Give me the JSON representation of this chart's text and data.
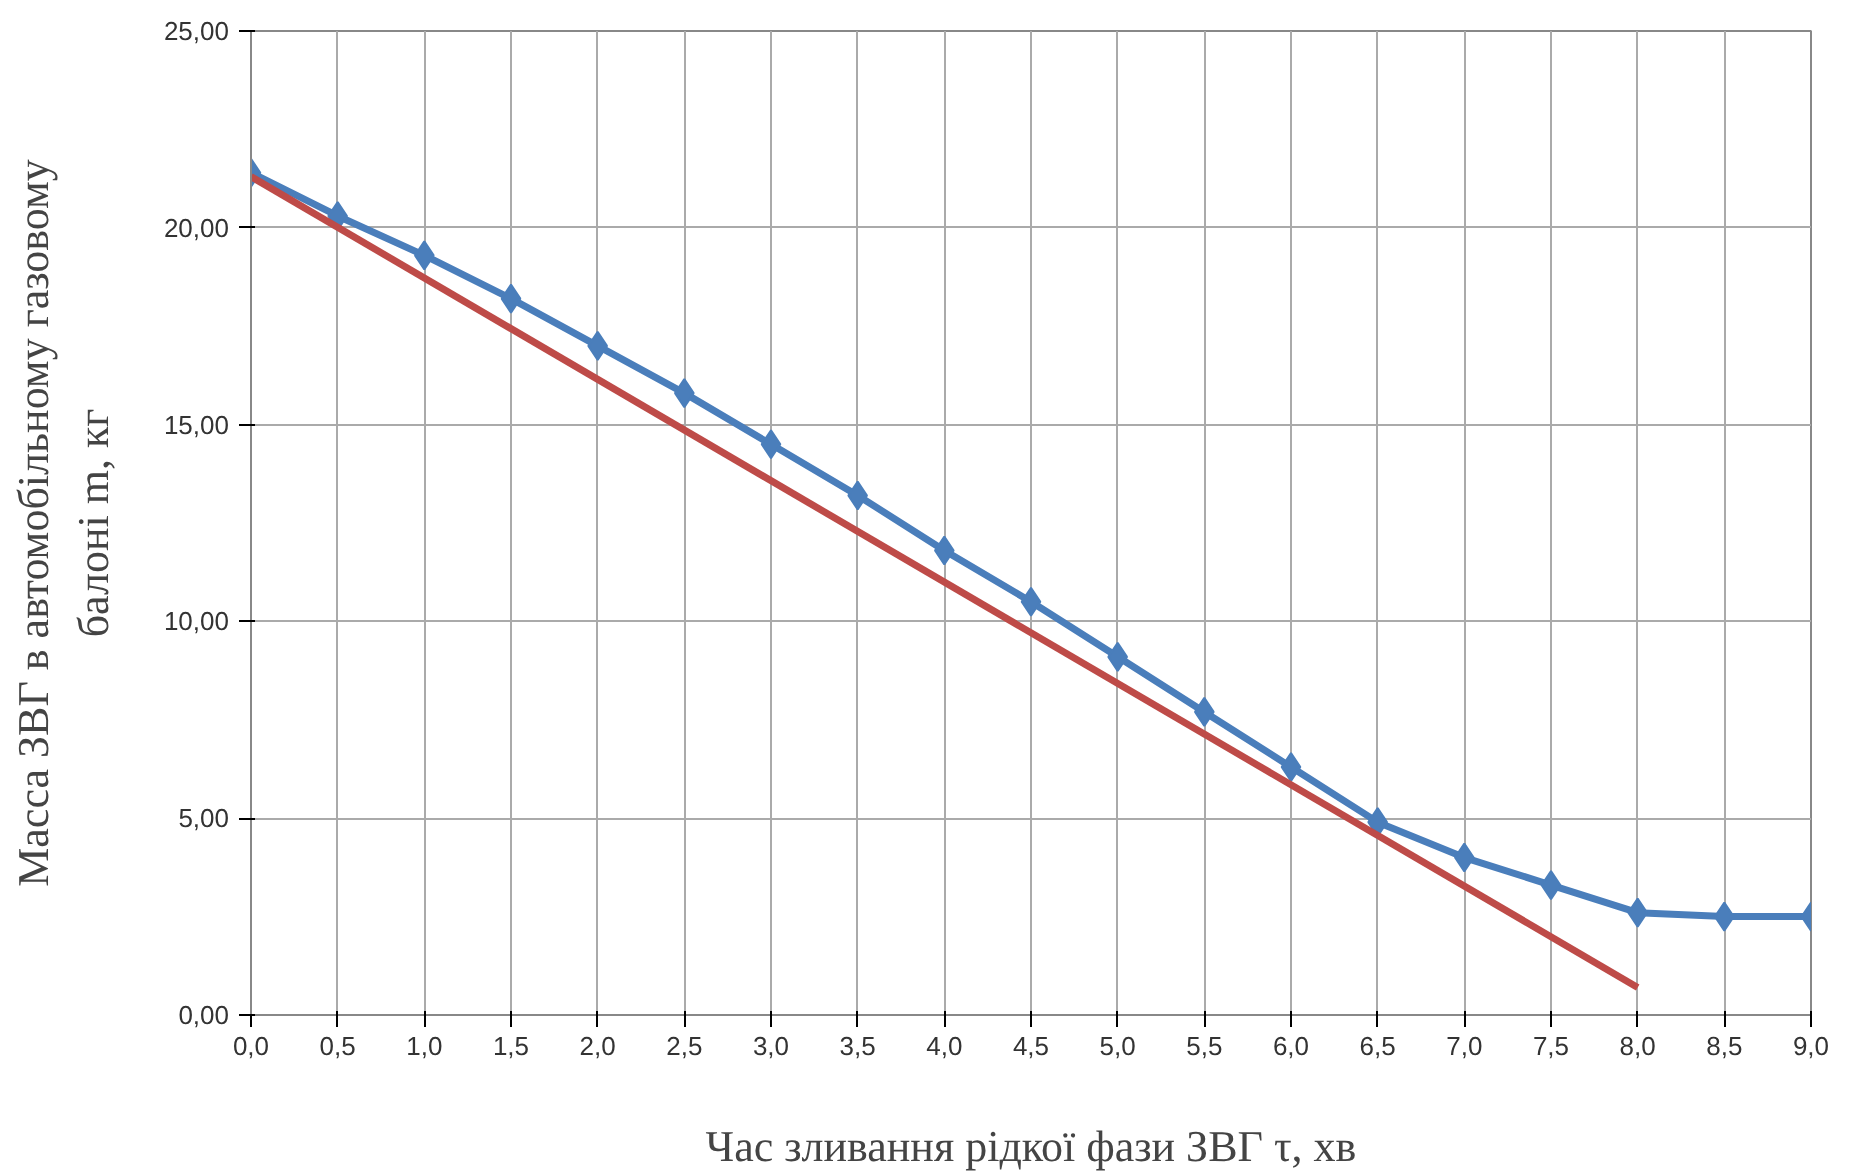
{
  "chart_data": {
    "type": "line",
    "xlabel": "Час зливання рідкої фази ЗВГ τ, хв",
    "ylabel": "Масса ЗВГ в автомобільному газовому\nбалоні m, кг",
    "x": [
      0,
      0.5,
      1,
      1.5,
      2,
      2.5,
      3,
      3.5,
      4,
      4.5,
      5,
      5.5,
      6,
      6.5,
      7,
      7.5,
      8,
      8.5,
      9
    ],
    "series": [
      {
        "color": "#4a7ebb",
        "marker": "diamond",
        "values": [
          21.4,
          20.3,
          19.3,
          18.2,
          17.0,
          15.8,
          14.5,
          13.2,
          11.8,
          10.5,
          9.1,
          7.7,
          6.3,
          4.9,
          4.0,
          3.3,
          2.6,
          2.5,
          2.5
        ]
      },
      {
        "color": "#be4b48",
        "marker": "none",
        "x": [
          0,
          8
        ],
        "values": [
          21.3,
          0.7
        ]
      }
    ],
    "xlim": [
      0,
      9
    ],
    "ylim": [
      0,
      25
    ],
    "xticks": [
      {
        "value": 0,
        "label": "0,0"
      },
      {
        "value": 0.5,
        "label": "0,5"
      },
      {
        "value": 1,
        "label": "1,0"
      },
      {
        "value": 1.5,
        "label": "1,5"
      },
      {
        "value": 2,
        "label": "2,0"
      },
      {
        "value": 2.5,
        "label": "2,5"
      },
      {
        "value": 3,
        "label": "3,0"
      },
      {
        "value": 3.5,
        "label": "3,5"
      },
      {
        "value": 4,
        "label": "4,0"
      },
      {
        "value": 4.5,
        "label": "4,5"
      },
      {
        "value": 5,
        "label": "5,0"
      },
      {
        "value": 5.5,
        "label": "5,5"
      },
      {
        "value": 6,
        "label": "6,0"
      },
      {
        "value": 6.5,
        "label": "6,5"
      },
      {
        "value": 7,
        "label": "7,0"
      },
      {
        "value": 7.5,
        "label": "7,5"
      },
      {
        "value": 8,
        "label": "8,0"
      },
      {
        "value": 8.5,
        "label": "8,5"
      },
      {
        "value": 9,
        "label": "9,0"
      }
    ],
    "yticks": [
      {
        "value": 0,
        "label": "0,00"
      },
      {
        "value": 5,
        "label": "5,00"
      },
      {
        "value": 10,
        "label": "10,00"
      },
      {
        "value": 15,
        "label": "15,00"
      },
      {
        "value": 20,
        "label": "20,00"
      },
      {
        "value": 25,
        "label": "25,00"
      }
    ],
    "grid": true
  }
}
